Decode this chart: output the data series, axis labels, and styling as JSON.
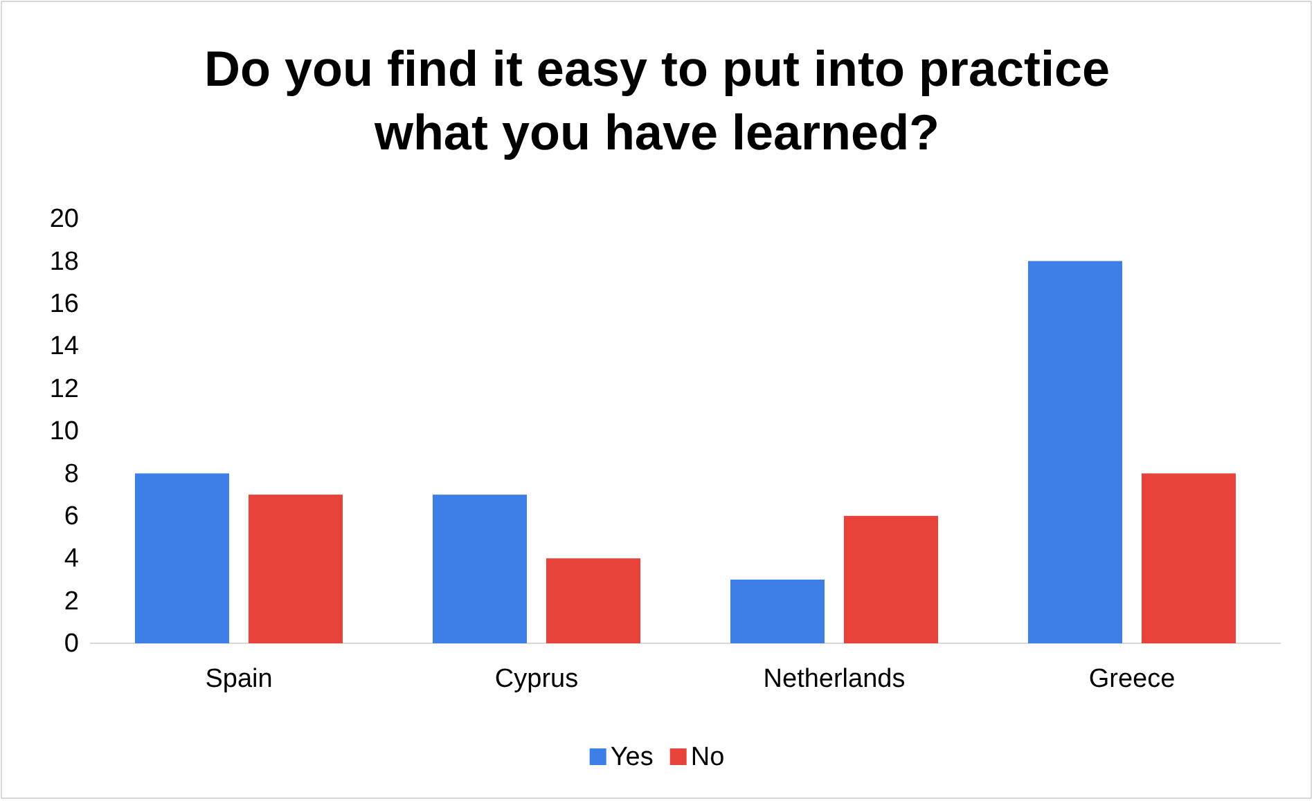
{
  "chart_data": {
    "type": "bar",
    "title": "Do you find it easy to put into practice what you have learned?",
    "categories": [
      "Spain",
      "Cyprus",
      "Netherlands",
      "Greece"
    ],
    "series": [
      {
        "name": "Yes",
        "color": "#3d7fe6",
        "values": [
          8,
          7,
          3,
          18
        ]
      },
      {
        "name": "No",
        "color": "#e8433a",
        "values": [
          7,
          4,
          6,
          8
        ]
      }
    ],
    "ylim": [
      0,
      20
    ],
    "yticks": [
      0,
      2,
      4,
      6,
      8,
      10,
      12,
      14,
      16,
      18,
      20
    ],
    "grid": false,
    "legend": "bottom"
  }
}
